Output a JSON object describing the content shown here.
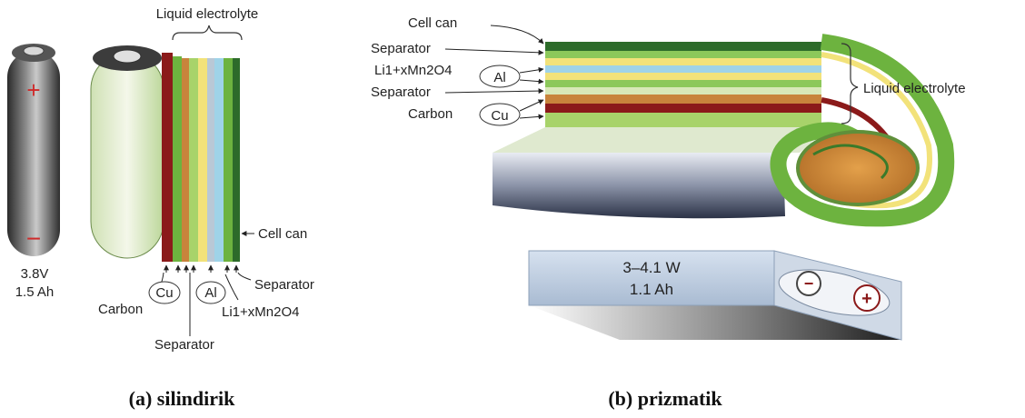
{
  "panel_a": {
    "small_cell": {
      "voltage": "3.8V",
      "capacity": "1.5 Ah",
      "plus": "+",
      "minus": "−"
    },
    "labels": {
      "liquid_electrolyte": "Liquid electrolyte",
      "cell_can": "Cell can",
      "cu": "Cu",
      "al": "Al",
      "carbon": "Carbon",
      "separator_bottom": "Separator",
      "separator_right": "Separator",
      "cathode": "Li1+xMn2O4"
    },
    "caption": "(a) silindirik"
  },
  "panel_b": {
    "labels": {
      "cell_can": "Cell can",
      "separator_top": "Separator",
      "cathode": "Li1+xMn2O4",
      "al": "Al",
      "separator_mid": "Separator",
      "carbon": "Carbon",
      "cu": "Cu",
      "liquid_electrolyte": "Liquid electrolyte"
    },
    "flat_cell": {
      "power": "3–4.1 W",
      "capacity": "1.1 Ah",
      "minus": "−",
      "plus": "+"
    },
    "caption": "(b) prizmatik"
  },
  "colors": {
    "carbon": "#8b1a1a",
    "copper": "#c8843c",
    "green": "#6db33f",
    "yellow": "#f2e27a",
    "aluminum": "#9fd3e8",
    "can": "#3b3b3b"
  }
}
